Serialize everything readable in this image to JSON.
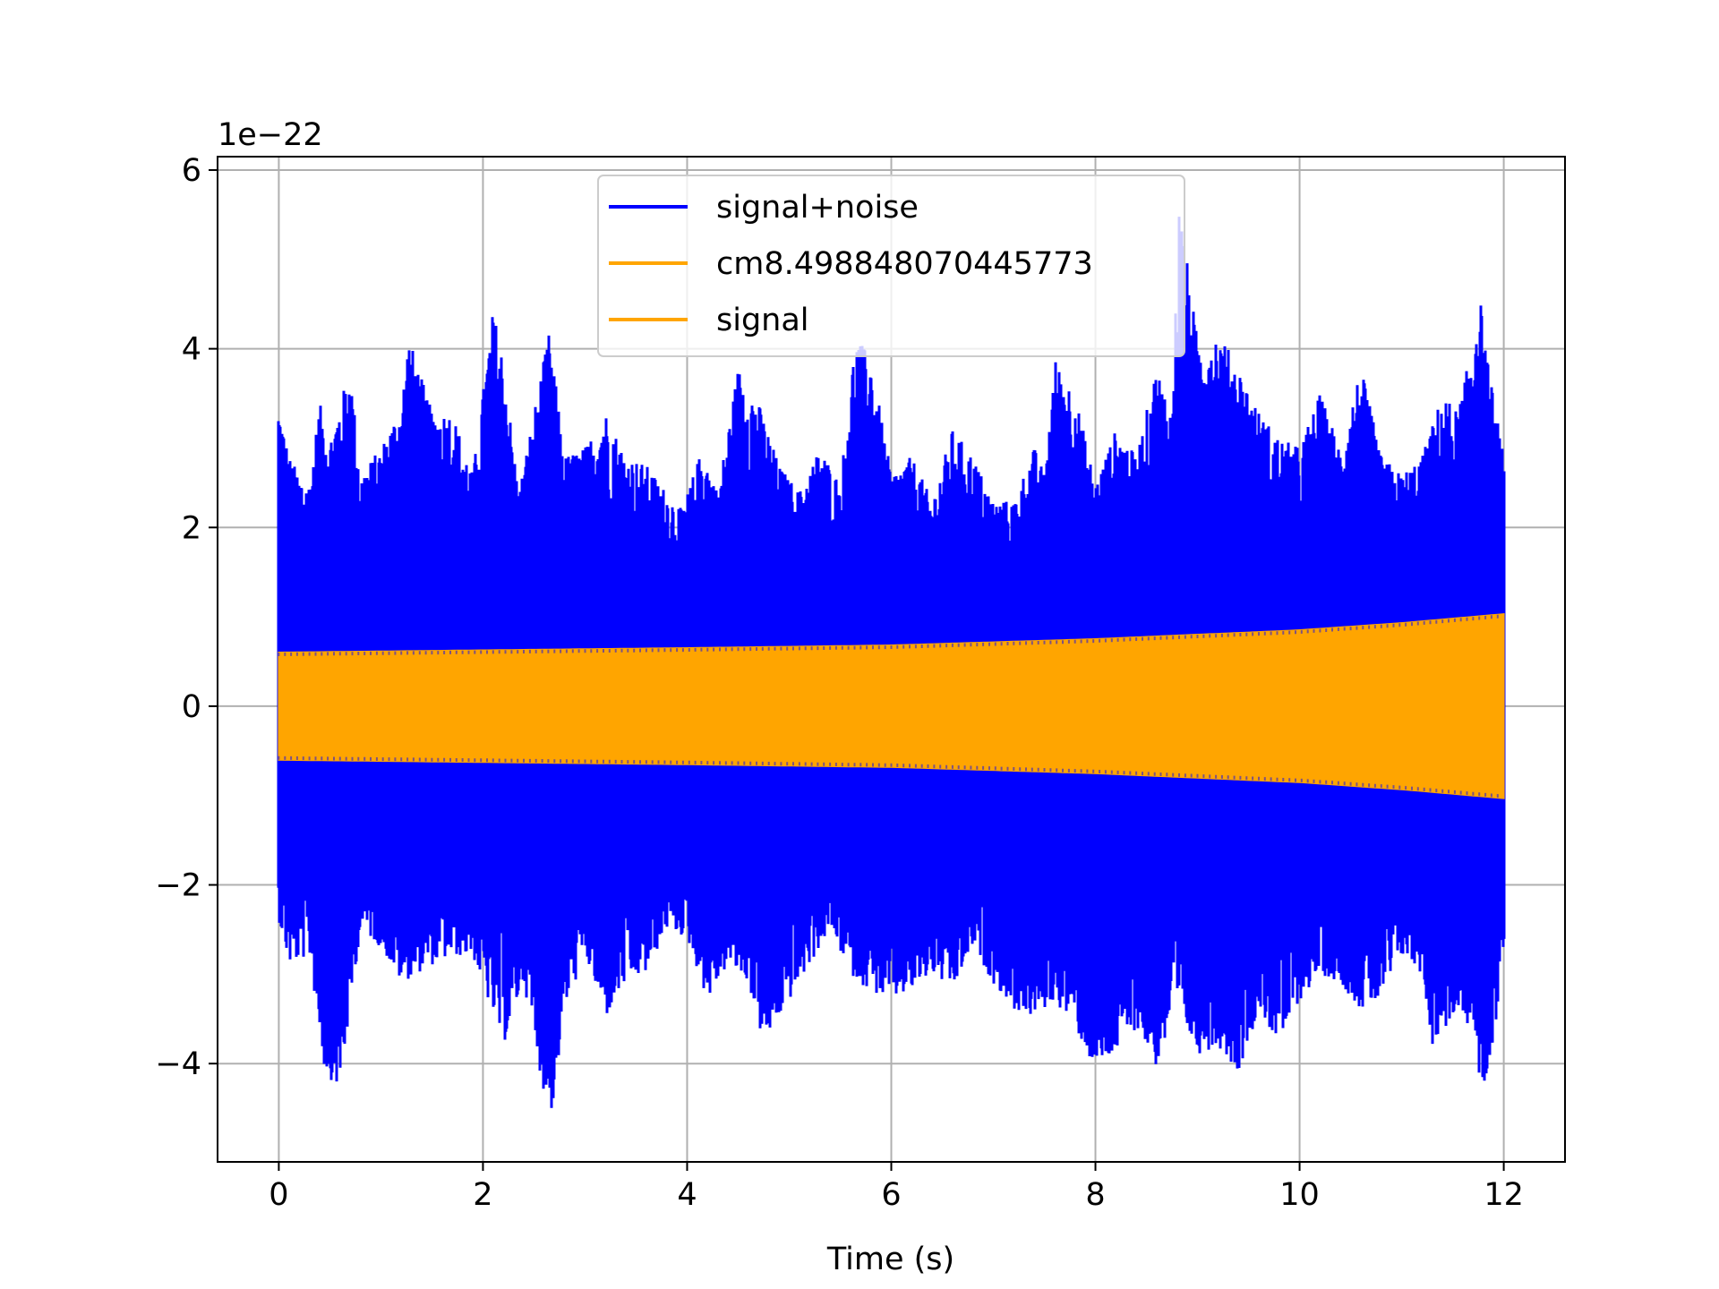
{
  "chart_data": {
    "type": "line",
    "title": "",
    "xlabel": "Time (s)",
    "ylabel": "",
    "y_scale_label": "1e−22",
    "xlim": [
      -0.6,
      12.6
    ],
    "ylim": [
      -5.1,
      6.15
    ],
    "x_ticks": [
      0,
      2,
      4,
      6,
      8,
      10,
      12
    ],
    "x_tick_labels": [
      "0",
      "2",
      "4",
      "6",
      "8",
      "10",
      "12"
    ],
    "y_ticks": [
      -4,
      -2,
      0,
      2,
      4,
      6
    ],
    "y_tick_labels": [
      "−4",
      "−2",
      "0",
      "2",
      "4",
      "6"
    ],
    "grid": true,
    "legend_position": "top-center",
    "series": [
      {
        "name": "signal+noise",
        "color": "#0000ff",
        "description_free": true,
        "t_range": [
          0,
          12
        ],
        "envelope_max_top": [
          [
            0.0,
            3.4
          ],
          [
            0.1,
            2.8
          ],
          [
            0.2,
            2.6
          ],
          [
            0.3,
            2.5
          ],
          [
            0.4,
            3.4
          ],
          [
            0.5,
            3.0
          ],
          [
            0.7,
            3.8
          ],
          [
            0.8,
            2.6
          ],
          [
            1.0,
            2.9
          ],
          [
            1.2,
            3.4
          ],
          [
            1.27,
            4.15
          ],
          [
            1.5,
            3.3
          ],
          [
            1.7,
            3.3
          ],
          [
            1.9,
            2.6
          ],
          [
            2.1,
            4.45
          ],
          [
            2.2,
            3.9
          ],
          [
            2.35,
            2.4
          ],
          [
            2.5,
            3.3
          ],
          [
            2.65,
            4.2
          ],
          [
            2.8,
            2.8
          ],
          [
            3.0,
            2.9
          ],
          [
            3.2,
            3.3
          ],
          [
            3.4,
            2.8
          ],
          [
            3.6,
            2.7
          ],
          [
            3.8,
            2.4
          ],
          [
            3.95,
            2.2
          ],
          [
            4.15,
            2.9
          ],
          [
            4.3,
            2.4
          ],
          [
            4.5,
            3.8
          ],
          [
            4.7,
            3.4
          ],
          [
            4.9,
            2.7
          ],
          [
            5.1,
            2.4
          ],
          [
            5.3,
            2.9
          ],
          [
            5.5,
            2.5
          ],
          [
            5.65,
            4.15
          ],
          [
            5.8,
            3.9
          ],
          [
            6.0,
            2.6
          ],
          [
            6.2,
            2.8
          ],
          [
            6.4,
            2.3
          ],
          [
            6.6,
            3.1
          ],
          [
            6.8,
            2.8
          ],
          [
            7.0,
            2.3
          ],
          [
            7.2,
            2.3
          ],
          [
            7.4,
            2.9
          ],
          [
            7.5,
            2.6
          ],
          [
            7.6,
            3.9
          ],
          [
            7.8,
            3.5
          ],
          [
            8.0,
            2.5
          ],
          [
            8.2,
            3.1
          ],
          [
            8.4,
            2.8
          ],
          [
            8.6,
            3.8
          ],
          [
            8.75,
            3.3
          ],
          [
            8.82,
            5.65
          ],
          [
            9.0,
            4.1
          ],
          [
            9.2,
            4.2
          ],
          [
            9.4,
            3.8
          ],
          [
            9.6,
            3.3
          ],
          [
            9.8,
            3.0
          ],
          [
            10.0,
            2.9
          ],
          [
            10.2,
            3.5
          ],
          [
            10.4,
            2.9
          ],
          [
            10.6,
            3.8
          ],
          [
            10.8,
            2.8
          ],
          [
            11.0,
            2.6
          ],
          [
            11.2,
            2.8
          ],
          [
            11.4,
            3.5
          ],
          [
            11.55,
            3.3
          ],
          [
            11.7,
            4.1
          ],
          [
            11.75,
            4.75
          ],
          [
            11.85,
            3.8
          ],
          [
            12.0,
            2.8
          ]
        ],
        "envelope_min_bottom": [
          [
            0.0,
            -2.4
          ],
          [
            0.1,
            -2.9
          ],
          [
            0.3,
            -2.8
          ],
          [
            0.45,
            -4.1
          ],
          [
            0.6,
            -4.3
          ],
          [
            0.8,
            -2.5
          ],
          [
            1.0,
            -2.7
          ],
          [
            1.2,
            -3.1
          ],
          [
            1.5,
            -2.9
          ],
          [
            1.7,
            -2.8
          ],
          [
            1.9,
            -2.8
          ],
          [
            2.05,
            -3.3
          ],
          [
            2.2,
            -3.8
          ],
          [
            2.4,
            -3.1
          ],
          [
            2.6,
            -4.35
          ],
          [
            2.68,
            -4.55
          ],
          [
            2.8,
            -3.4
          ],
          [
            3.0,
            -2.8
          ],
          [
            3.2,
            -3.5
          ],
          [
            3.4,
            -3.1
          ],
          [
            3.6,
            -3.0
          ],
          [
            3.8,
            -2.5
          ],
          [
            4.0,
            -2.6
          ],
          [
            4.2,
            -3.3
          ],
          [
            4.4,
            -2.9
          ],
          [
            4.6,
            -3.1
          ],
          [
            4.75,
            -3.8
          ],
          [
            5.0,
            -3.3
          ],
          [
            5.2,
            -2.9
          ],
          [
            5.4,
            -2.5
          ],
          [
            5.6,
            -3.0
          ],
          [
            5.8,
            -3.2
          ],
          [
            6.0,
            -3.3
          ],
          [
            6.2,
            -3.2
          ],
          [
            6.4,
            -3.0
          ],
          [
            6.6,
            -3.2
          ],
          [
            6.8,
            -2.7
          ],
          [
            7.0,
            -3.1
          ],
          [
            7.2,
            -3.4
          ],
          [
            7.4,
            -3.5
          ],
          [
            7.6,
            -3.3
          ],
          [
            7.8,
            -3.6
          ],
          [
            8.0,
            -4.1
          ],
          [
            8.2,
            -3.9
          ],
          [
            8.4,
            -3.6
          ],
          [
            8.6,
            -4.05
          ],
          [
            8.8,
            -3.4
          ],
          [
            9.0,
            -3.9
          ],
          [
            9.2,
            -3.8
          ],
          [
            9.4,
            -4.1
          ],
          [
            9.6,
            -3.4
          ],
          [
            9.8,
            -3.8
          ],
          [
            10.0,
            -3.3
          ],
          [
            10.2,
            -3.0
          ],
          [
            10.4,
            -3.1
          ],
          [
            10.6,
            -3.4
          ],
          [
            10.8,
            -3.3
          ],
          [
            11.0,
            -2.8
          ],
          [
            11.2,
            -3.0
          ],
          [
            11.3,
            -3.8
          ],
          [
            11.5,
            -3.5
          ],
          [
            11.7,
            -3.6
          ],
          [
            11.78,
            -4.4
          ],
          [
            11.9,
            -3.8
          ],
          [
            12.0,
            -2.7
          ]
        ]
      },
      {
        "name": "cm8.498848070445773",
        "color": "#ffa500",
        "t_range": [
          0,
          12
        ],
        "amplitude_envelope": [
          [
            0,
            0.6
          ],
          [
            4,
            0.65
          ],
          [
            6,
            0.68
          ],
          [
            8,
            0.75
          ],
          [
            10,
            0.85
          ],
          [
            11,
            0.93
          ],
          [
            12,
            1.03
          ]
        ]
      },
      {
        "name": "signal",
        "color": "#ffa500",
        "t_range": [
          0,
          12
        ],
        "amplitude_envelope": [
          [
            0,
            0.6
          ],
          [
            4,
            0.65
          ],
          [
            6,
            0.68
          ],
          [
            8,
            0.75
          ],
          [
            10,
            0.85
          ],
          [
            11,
            0.93
          ],
          [
            12,
            1.03
          ]
        ]
      }
    ]
  }
}
